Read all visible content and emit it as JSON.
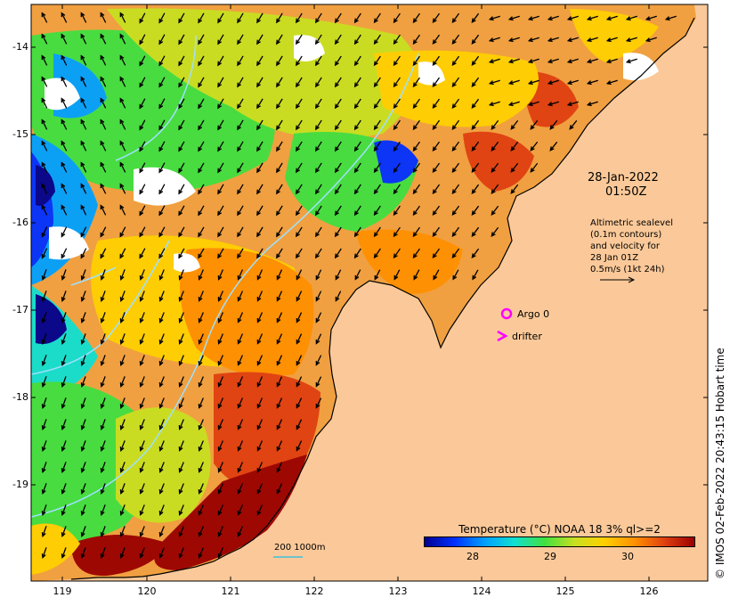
{
  "lat_ticks": [
    "-14",
    "-15",
    "-16",
    "-17",
    "-18",
    "-19"
  ],
  "lon_ticks": [
    "119",
    "120",
    "121",
    "122",
    "123",
    "124",
    "125",
    "126"
  ],
  "map": {
    "lon_range": [
      118.6,
      126.7
    ],
    "lat_range": [
      -20.1,
      -13.6
    ]
  },
  "annotations": {
    "date": "28-Jan-2022",
    "time": "01:50Z",
    "altimetry_lines": [
      "Altimetric sealevel",
      "(0.1m contours)",
      "and velocity for",
      "28 Jan 01Z",
      "0.5m/s (1kt 24h)"
    ],
    "argo_label": "Argo 0",
    "drifter_label": "drifter",
    "scale_label": "200  1000m"
  },
  "colorbar": {
    "title": "Temperature (°C) NOAA 18 3% ql>=2",
    "ticks": [
      "28",
      "29",
      "30"
    ],
    "colors": [
      "#00008f",
      "#0030ff",
      "#00a0ff",
      "#10e0d0",
      "#40e040",
      "#c8e020",
      "#ffd000",
      "#ff9000",
      "#e04010",
      "#9a0000"
    ]
  },
  "credit": "© IMOS 02-Feb-2022 20:43:15 Hobart time",
  "colors": {
    "land": "#fbc999",
    "argo_marker": "#ff00ff",
    "drifter_marker": "#ff00ff",
    "arrow": "#000000",
    "contour": "#9fe0ff"
  }
}
